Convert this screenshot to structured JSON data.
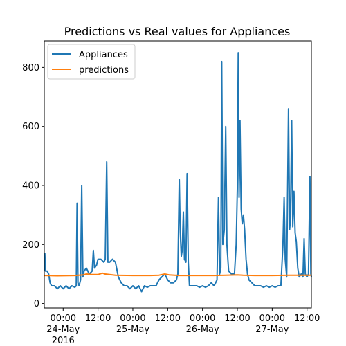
{
  "chart_data": {
    "type": "line",
    "title": "Predictions vs Real values for Appliances",
    "xlabel": "",
    "ylabel": "",
    "x_unit": "hours",
    "xlim": [
      -6.5,
      85.5
    ],
    "ylim": [
      -15,
      890
    ],
    "x_ticks": [
      {
        "x": 0,
        "label": "00:00",
        "sub": "24-May",
        "sub2": "2016"
      },
      {
        "x": 12,
        "label": "12:00"
      },
      {
        "x": 24,
        "label": "00:00",
        "sub": "25-May"
      },
      {
        "x": 36,
        "label": "12:00"
      },
      {
        "x": 48,
        "label": "00:00",
        "sub": "26-May"
      },
      {
        "x": 60,
        "label": "12:00"
      },
      {
        "x": 72,
        "label": "00:00",
        "sub": "27-May"
      },
      {
        "x": 84,
        "label": "12:00"
      }
    ],
    "y_ticks": [
      0,
      200,
      400,
      600,
      800
    ],
    "legend": {
      "position": "top-left"
    },
    "grid": false,
    "series": [
      {
        "name": "Appliances",
        "color": "#1f77b4",
        "points": [
          [
            -6.5,
            110
          ],
          [
            -6.3,
            170
          ],
          [
            -6.1,
            110
          ],
          [
            -5.5,
            110
          ],
          [
            -5.0,
            100
          ],
          [
            -4.5,
            70
          ],
          [
            -4.0,
            60
          ],
          [
            -3.0,
            60
          ],
          [
            -2.0,
            50
          ],
          [
            -1.0,
            60
          ],
          [
            0.0,
            50
          ],
          [
            1.0,
            60
          ],
          [
            2.0,
            50
          ],
          [
            3.0,
            60
          ],
          [
            4.0,
            55
          ],
          [
            4.5,
            60
          ],
          [
            4.8,
            340
          ],
          [
            5.1,
            70
          ],
          [
            5.5,
            60
          ],
          [
            6.0,
            80
          ],
          [
            6.4,
            400
          ],
          [
            6.8,
            90
          ],
          [
            7.2,
            110
          ],
          [
            8.0,
            120
          ],
          [
            9.0,
            100
          ],
          [
            10.0,
            110
          ],
          [
            10.4,
            180
          ],
          [
            10.8,
            120
          ],
          [
            11.5,
            130
          ],
          [
            12.0,
            150
          ],
          [
            13.0,
            150
          ],
          [
            14.0,
            140
          ],
          [
            14.5,
            150
          ],
          [
            15.0,
            480
          ],
          [
            15.4,
            140
          ],
          [
            16.0,
            140
          ],
          [
            17.0,
            150
          ],
          [
            18.0,
            140
          ],
          [
            19.0,
            90
          ],
          [
            20.0,
            70
          ],
          [
            21.0,
            60
          ],
          [
            22.0,
            60
          ],
          [
            23.0,
            50
          ],
          [
            24.0,
            60
          ],
          [
            25.0,
            50
          ],
          [
            26.0,
            60
          ],
          [
            27.0,
            40
          ],
          [
            28.0,
            60
          ],
          [
            29.0,
            55
          ],
          [
            30.0,
            60
          ],
          [
            31.0,
            60
          ],
          [
            32.0,
            60
          ],
          [
            33.0,
            80
          ],
          [
            34.0,
            90
          ],
          [
            35.0,
            100
          ],
          [
            35.5,
            90
          ],
          [
            36.0,
            80
          ],
          [
            37.0,
            70
          ],
          [
            38.0,
            70
          ],
          [
            39.0,
            80
          ],
          [
            39.5,
            100
          ],
          [
            40.0,
            420
          ],
          [
            40.3,
            250
          ],
          [
            40.7,
            160
          ],
          [
            41.0,
            180
          ],
          [
            41.4,
            310
          ],
          [
            41.8,
            150
          ],
          [
            42.3,
            140
          ],
          [
            42.7,
            440
          ],
          [
            43.1,
            140
          ],
          [
            43.5,
            60
          ],
          [
            44.0,
            60
          ],
          [
            45.0,
            60
          ],
          [
            46.0,
            60
          ],
          [
            47.0,
            55
          ],
          [
            48.0,
            60
          ],
          [
            49.0,
            55
          ],
          [
            50.0,
            60
          ],
          [
            51.0,
            70
          ],
          [
            52.0,
            60
          ],
          [
            53.0,
            80
          ],
          [
            53.5,
            360
          ],
          [
            53.9,
            100
          ],
          [
            54.3,
            120
          ],
          [
            54.6,
            820
          ],
          [
            55.0,
            200
          ],
          [
            55.5,
            250
          ],
          [
            56.0,
            600
          ],
          [
            56.4,
            200
          ],
          [
            57.0,
            110
          ],
          [
            58.0,
            100
          ],
          [
            59.0,
            100
          ],
          [
            59.6,
            200
          ],
          [
            60.0,
            390
          ],
          [
            60.3,
            850
          ],
          [
            60.6,
            360
          ],
          [
            60.9,
            620
          ],
          [
            61.3,
            320
          ],
          [
            61.7,
            270
          ],
          [
            62.1,
            300
          ],
          [
            62.5,
            250
          ],
          [
            63.0,
            150
          ],
          [
            63.5,
            100
          ],
          [
            64.0,
            80
          ],
          [
            65.0,
            70
          ],
          [
            66.0,
            60
          ],
          [
            67.0,
            60
          ],
          [
            68.0,
            60
          ],
          [
            69.0,
            55
          ],
          [
            70.0,
            60
          ],
          [
            71.0,
            55
          ],
          [
            72.0,
            60
          ],
          [
            73.0,
            55
          ],
          [
            74.0,
            60
          ],
          [
            75.0,
            60
          ],
          [
            75.7,
            200
          ],
          [
            76.1,
            360
          ],
          [
            76.5,
            150
          ],
          [
            77.0,
            90
          ],
          [
            77.6,
            660
          ],
          [
            78.0,
            250
          ],
          [
            78.3,
            290
          ],
          [
            78.7,
            620
          ],
          [
            79.1,
            260
          ],
          [
            79.5,
            380
          ],
          [
            79.9,
            240
          ],
          [
            80.3,
            210
          ],
          [
            80.8,
            120
          ],
          [
            81.3,
            90
          ],
          [
            82.0,
            100
          ],
          [
            82.6,
            90
          ],
          [
            83.0,
            220
          ],
          [
            83.4,
            100
          ],
          [
            84.0,
            90
          ],
          [
            84.5,
            100
          ],
          [
            85.0,
            430
          ],
          [
            85.3,
            100
          ],
          [
            85.5,
            90
          ]
        ]
      },
      {
        "name": "predictions",
        "color": "#ff7f0e",
        "points": [
          [
            -6.5,
            95
          ],
          [
            -2.0,
            94
          ],
          [
            4.0,
            95
          ],
          [
            7.0,
            97
          ],
          [
            8.0,
            100
          ],
          [
            10.0,
            98
          ],
          [
            12.0,
            98
          ],
          [
            13.5,
            103
          ],
          [
            14.5,
            100
          ],
          [
            16.0,
            98
          ],
          [
            18.0,
            96
          ],
          [
            24.0,
            95
          ],
          [
            30.0,
            95
          ],
          [
            33.0,
            96
          ],
          [
            35.0,
            100
          ],
          [
            36.5,
            97
          ],
          [
            40.0,
            95
          ],
          [
            48.0,
            95
          ],
          [
            52.0,
            95
          ],
          [
            56.0,
            96
          ],
          [
            60.0,
            97
          ],
          [
            62.0,
            96
          ],
          [
            66.0,
            95
          ],
          [
            72.0,
            95
          ],
          [
            78.0,
            96
          ],
          [
            82.0,
            96
          ],
          [
            85.5,
            96
          ]
        ]
      }
    ]
  }
}
